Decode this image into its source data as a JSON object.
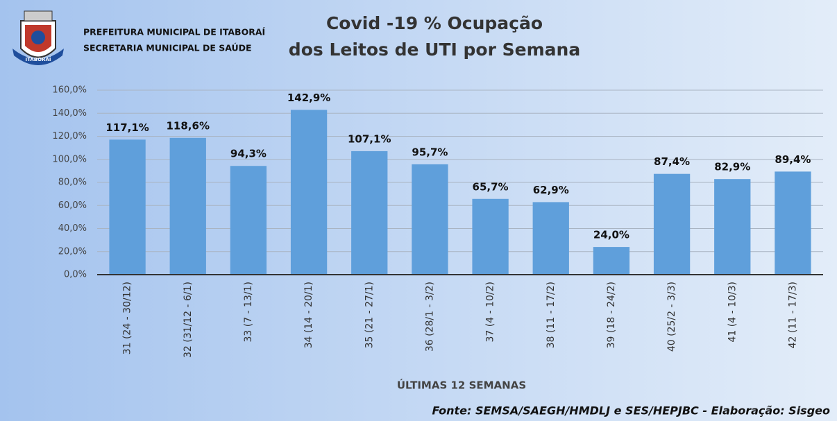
{
  "header": {
    "lines": [
      "PREFEITURA MUNICIPAL DE ITABORAÍ",
      "SECRETARIA MUNICIPAL DE SAÚDE"
    ],
    "logo_text": "ITABORAÍ"
  },
  "chart_data": {
    "type": "bar",
    "title": [
      "Covid -19 % Ocupação",
      "dos Leitos de UTI por Semana"
    ],
    "x_label": "ÚLTIMAS 12 SEMANAS",
    "source": "Fonte: SEMSA/SAEGH/HMDLJ e SES/HEPJBC - Elaboração: Sisgeo",
    "categories": [
      "31 (24 - 30/12)",
      "32 (31/12 - 6/1)",
      "33 (7 - 13/1)",
      "34 (14 - 20/1)",
      "35 (21 - 27/1)",
      "36 (28/1 - 3/2)",
      "37 (4 - 10/2)",
      "38 (11 - 17/2)",
      "39 (18 - 24/2)",
      "40 (25/2 - 3/3)",
      "41 (4 - 10/3)",
      "42 (11 - 17/3)"
    ],
    "values": [
      117.1,
      118.6,
      94.3,
      142.9,
      107.1,
      95.7,
      65.7,
      62.9,
      24.0,
      87.4,
      82.9,
      89.4
    ],
    "value_labels": [
      "117,1%",
      "118,6%",
      "94,3%",
      "142,9%",
      "107,1%",
      "95,7%",
      "65,7%",
      "62,9%",
      "24,0%",
      "87,4%",
      "82,9%",
      "89,4%"
    ],
    "color": "#5f9fdb",
    "ylim": [
      0,
      160
    ],
    "yticks": [
      {
        "value": 0,
        "label": "0,0%"
      },
      {
        "value": 20,
        "label": "20,0%"
      },
      {
        "value": 40,
        "label": "40,0%"
      },
      {
        "value": 60,
        "label": "60,0%"
      },
      {
        "value": 80,
        "label": "80,0%"
      },
      {
        "value": 100,
        "label": "100,0%"
      },
      {
        "value": 120,
        "label": "120,0%"
      },
      {
        "value": 140,
        "label": "140,0%"
      },
      {
        "value": 160,
        "label": "160,0%"
      }
    ],
    "grid": true
  }
}
